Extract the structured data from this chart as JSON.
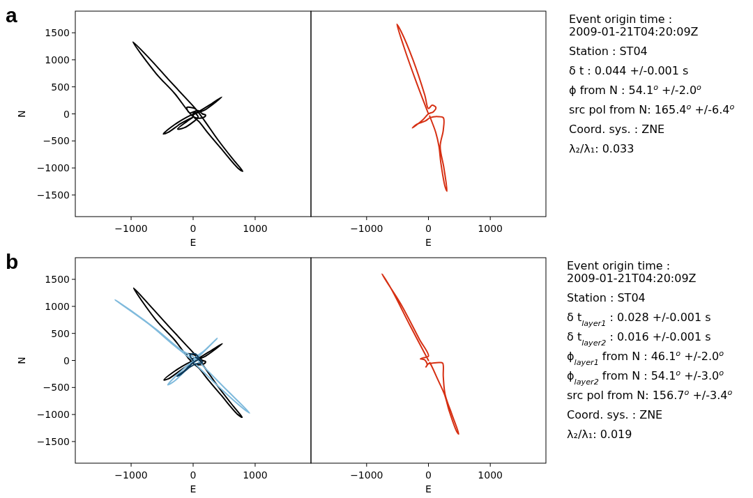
{
  "chart_data": [
    {
      "type": "line",
      "title": "a",
      "xlabel": "E",
      "ylabel": "N",
      "xlim": [
        -1900,
        1900
      ],
      "ylim": [
        -1900,
        1900
      ],
      "xticks": [
        -1000,
        0,
        1000
      ],
      "yticks": [
        -1500,
        -1000,
        -500,
        0,
        500,
        1000,
        1500
      ],
      "series": [
        {
          "color": "#000000",
          "x": [
            0,
            50,
            -100,
            -60,
            80,
            150,
            200,
            180,
            80,
            0,
            -300,
            -600,
            -970,
            -700,
            -400,
            -150,
            50,
            180,
            400,
            650,
            800,
            720,
            450,
            250,
            100,
            0,
            200,
            460,
            300,
            100,
            -100,
            -300,
            -480,
            -400,
            -200,
            0,
            -100,
            -250,
            -150,
            0,
            80,
            30
          ],
          "values": [
            0,
            80,
            120,
            20,
            60,
            0,
            -20,
            -60,
            -80,
            -50,
            380,
            750,
            1330,
            1020,
            640,
            330,
            80,
            -120,
            -480,
            -850,
            -1060,
            -1000,
            -640,
            -370,
            -150,
            -30,
            80,
            310,
            190,
            50,
            -60,
            -200,
            -370,
            -340,
            -180,
            -60,
            -140,
            -280,
            -260,
            -150,
            -60,
            20
          ]
        }
      ]
    },
    {
      "type": "line",
      "xlabel": "E",
      "xlim": [
        -1900,
        1900
      ],
      "ylim": [
        -1900,
        1900
      ],
      "tick_labels": "x",
      "xticks": [
        -1000,
        0,
        1000
      ],
      "series": [
        {
          "color": "#d62f12",
          "x": [
            0,
            -200,
            -400,
            -510,
            -440,
            -250,
            -60,
            0,
            60,
            120,
            80,
            0,
            -100,
            -260,
            -200,
            -50,
            30,
            150,
            240,
            240,
            190,
            250,
            300,
            270,
            200,
            170,
            120,
            40,
            20
          ],
          "values": [
            0,
            600,
            1250,
            1660,
            1520,
            1000,
            350,
            100,
            160,
            120,
            40,
            0,
            -120,
            -260,
            -200,
            -130,
            -70,
            -50,
            -70,
            -300,
            -600,
            -1000,
            -1430,
            -1350,
            -900,
            -600,
            -350,
            -100,
            -40
          ]
        }
      ]
    },
    {
      "type": "other",
      "annotations": [
        "Event origin time : 2009-01-21T04:20:09Z",
        "Station : ST04",
        "δ t : 0.044 +/-0.001 s",
        "ϕ from N : 54.1$^{o}$ +/-2.0$^{o}$",
        "src pol from N: 165.4$^{o}$ +/-6.4$^{o}$",
        "Coord. sys. : ZNE",
        "λ₂/λ₁: 0.033"
      ]
    },
    {
      "type": "line",
      "title": "b",
      "xlabel": "E",
      "ylabel": "N",
      "xlim": [
        -1900,
        1900
      ],
      "ylim": [
        -1900,
        1900
      ],
      "xticks": [
        -1000,
        0,
        1000
      ],
      "yticks": [
        -1500,
        -1000,
        -500,
        0,
        500,
        1000,
        1500
      ],
      "series": [
        {
          "color": "#000000",
          "x": [
            0,
            50,
            -100,
            -60,
            80,
            150,
            200,
            180,
            80,
            0,
            -300,
            -600,
            -960,
            -700,
            -400,
            -150,
            50,
            180,
            400,
            650,
            790,
            720,
            450,
            250,
            100,
            0,
            200,
            470,
            300,
            100,
            -100,
            -300,
            -470,
            -400,
            -200,
            -40
          ],
          "values": [
            0,
            80,
            120,
            20,
            60,
            0,
            -20,
            -60,
            -80,
            -50,
            380,
            750,
            1340,
            1020,
            640,
            330,
            80,
            -120,
            -480,
            -850,
            -1050,
            -1000,
            -640,
            -370,
            -150,
            -30,
            80,
            310,
            190,
            50,
            -60,
            -200,
            -360,
            -340,
            -180,
            -60
          ]
        },
        {
          "color": "#7fbadc",
          "x": [
            0,
            -300,
            -700,
            -1260,
            -1000,
            -600,
            -200,
            50,
            200,
            500,
            910,
            820,
            500,
            200,
            50,
            0,
            200,
            390,
            250,
            50,
            -150,
            -410,
            -300,
            -100,
            0
          ],
          "values": [
            0,
            270,
            660,
            1120,
            920,
            580,
            200,
            30,
            -150,
            -500,
            -970,
            -900,
            -580,
            -250,
            -80,
            0,
            200,
            410,
            250,
            30,
            -150,
            -450,
            -380,
            -150,
            -30
          ]
        },
        {
          "color": "#0d3b5c",
          "x": [
            0,
            -50,
            40,
            100,
            150,
            60,
            -50,
            -200,
            -260,
            -150,
            0,
            80,
            40
          ],
          "values": [
            0,
            100,
            120,
            30,
            -40,
            -60,
            -120,
            -260,
            -290,
            -200,
            -40,
            20,
            60
          ]
        }
      ]
    },
    {
      "type": "line",
      "xlabel": "E",
      "xlim": [
        -1900,
        1900
      ],
      "ylim": [
        -1900,
        1900
      ],
      "tick_labels": "x",
      "xticks": [
        -1000,
        0,
        1000
      ],
      "series": [
        {
          "color": "#d62f12",
          "x": [
            0,
            -300,
            -600,
            -750,
            -700,
            -450,
            -150,
            0,
            -80,
            -130,
            -60,
            -20,
            -40,
            0,
            60,
            180,
            230,
            240,
            270,
            380,
            490,
            460,
            340,
            260,
            150,
            50,
            20
          ],
          "values": [
            0,
            650,
            1320,
            1600,
            1500,
            1050,
            400,
            80,
            50,
            30,
            10,
            -80,
            -120,
            -60,
            -50,
            -40,
            -50,
            -300,
            -630,
            -1000,
            -1360,
            -1320,
            -950,
            -630,
            -350,
            -100,
            -40
          ]
        }
      ]
    },
    {
      "type": "other",
      "annotations": [
        "Event origin time : 2009-01-21T04:20:09Z",
        "Station : ST04",
        "δ t$_{layer1}$ : 0.028 +/-0.001 s",
        "δ t$_{layer2}$ : 0.016 +/-0.001 s",
        "ϕ$_{layer1}$ from N : 46.1$^{o}$ +/-2.0$^{o}$",
        "ϕ$_{layer2}$ from N : 54.1$^{o}$ +/-3.0$^{o}$",
        "src pol from N: 156.7$^{o}$ +/-3.4$^{o}$",
        "Coord. sys. : ZNE",
        "λ₂/λ₁: 0.019"
      ]
    }
  ]
}
